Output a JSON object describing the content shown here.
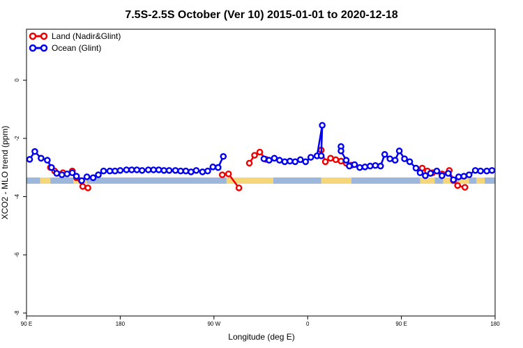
{
  "chart_data": {
    "type": "line",
    "title": "7.5S-2.5S October (Ver 10)   2015-01-01 to 2020-12-18",
    "xlabel": "Longitude (deg E)",
    "ylabel": "XCO2 - MLO trend (ppm)",
    "x_axis": {
      "domain": [
        0,
        360
      ],
      "ticks": [
        {
          "value": 0,
          "label": "90 E"
        },
        {
          "value": 90,
          "label": "180"
        },
        {
          "value": 180,
          "label": "90 W"
        },
        {
          "value": 270,
          "label": "0"
        },
        {
          "value": 360,
          "label": "90 E"
        },
        {
          "value": 450,
          "label": "180"
        }
      ],
      "range": [
        0,
        450
      ]
    },
    "y_axis": {
      "range": [
        -8.1,
        1.75
      ],
      "ticks": [
        0,
        -2,
        -4,
        -6,
        -8
      ]
    },
    "legend": {
      "placement": "top-left",
      "entries": [
        {
          "name": "Land (Nadir&Glint)",
          "color": "#ee0000"
        },
        {
          "name": "Ocean (Glint)",
          "color": "#0000ee"
        }
      ]
    },
    "land_mask": {
      "y": -3.45,
      "ocean_color": "#9db7dc",
      "land_color": "#f5d77a",
      "land_segments": [
        [
          13,
          23
        ],
        [
          45,
          58
        ],
        [
          192,
          237
        ],
        [
          283,
          312
        ],
        [
          378,
          392
        ],
        [
          400,
          412
        ],
        [
          415,
          425
        ],
        [
          432,
          440
        ]
      ]
    },
    "series": [
      {
        "name": "Land (Nadir&Glint)",
        "color": "#ee0000",
        "segments": [
          [
            [
              23,
              -3.0
            ],
            [
              27,
              -3.12
            ],
            [
              35,
              -3.18
            ],
            [
              44,
              -3.12
            ],
            [
              48,
              -3.35
            ],
            [
              54,
              -3.65
            ],
            [
              59,
              -3.7
            ]
          ],
          [
            [
              188,
              -3.25
            ],
            [
              194,
              -3.22
            ],
            [
              204,
              -3.7
            ]
          ],
          [
            [
              214,
              -2.85
            ],
            [
              219,
              -2.58
            ],
            [
              224,
              -2.47
            ],
            [
              230,
              -2.72
            ]
          ],
          [
            [
              283,
              -2.4
            ],
            [
              287,
              -2.8
            ],
            [
              292,
              -2.68
            ],
            [
              297,
              -2.73
            ],
            [
              302,
              -2.78
            ],
            [
              307,
              -2.85
            ],
            [
              312,
              -2.92
            ]
          ],
          [
            [
              380,
              -3.02
            ],
            [
              385,
              -3.12
            ],
            [
              390,
              -3.18
            ],
            [
              399,
              -3.22
            ],
            [
              406,
              -3.1
            ],
            [
              410,
              -3.45
            ],
            [
              414,
              -3.62
            ],
            [
              421,
              -3.68
            ]
          ]
        ]
      },
      {
        "name": "Ocean (Glint)",
        "color": "#0000ee",
        "segments": [
          [
            [
              3,
              -2.72
            ],
            [
              8,
              -2.45
            ],
            [
              14,
              -2.68
            ],
            [
              20,
              -2.75
            ],
            [
              24,
              -3.0
            ],
            [
              29,
              -3.2
            ],
            [
              34,
              -3.25
            ],
            [
              39,
              -3.22
            ],
            [
              44,
              -3.18
            ],
            [
              48,
              -3.3
            ],
            [
              53,
              -3.45
            ],
            [
              58,
              -3.32
            ],
            [
              64,
              -3.35
            ],
            [
              69,
              -3.25
            ],
            [
              74,
              -3.12
            ],
            [
              80,
              -3.12
            ],
            [
              85,
              -3.12
            ],
            [
              90,
              -3.1
            ],
            [
              96,
              -3.08
            ],
            [
              101,
              -3.08
            ],
            [
              106,
              -3.08
            ],
            [
              111,
              -3.1
            ],
            [
              117,
              -3.08
            ],
            [
              122,
              -3.08
            ],
            [
              127,
              -3.08
            ],
            [
              132,
              -3.1
            ],
            [
              137,
              -3.1
            ],
            [
              143,
              -3.1
            ],
            [
              148,
              -3.12
            ],
            [
              153,
              -3.12
            ],
            [
              158,
              -3.15
            ],
            [
              163,
              -3.1
            ],
            [
              169,
              -3.15
            ],
            [
              174,
              -3.12
            ],
            [
              179,
              -2.98
            ],
            [
              184,
              -3.0
            ],
            [
              189,
              -2.62
            ],
            [
              184,
              -3.0
            ]
          ],
          [
            [
              228,
              -2.7
            ],
            [
              233,
              -2.75
            ],
            [
              238,
              -2.68
            ],
            [
              243,
              -2.75
            ],
            [
              248,
              -2.8
            ],
            [
              253,
              -2.78
            ],
            [
              258,
              -2.8
            ],
            [
              263,
              -2.73
            ],
            [
              268,
              -2.8
            ],
            [
              273,
              -2.65
            ],
            [
              279,
              -2.6
            ],
            [
              284,
              -1.55
            ],
            [
              283,
              -2.6
            ]
          ],
          [
            [
              302,
              -2.28
            ],
            [
              302,
              -2.43
            ],
            [
              307,
              -2.75
            ],
            [
              310,
              -2.95
            ],
            [
              315,
              -2.9
            ],
            [
              320,
              -3.0
            ],
            [
              325,
              -2.98
            ],
            [
              330,
              -2.95
            ],
            [
              335,
              -2.93
            ],
            [
              340,
              -2.95
            ],
            [
              344,
              -2.55
            ],
            [
              349,
              -2.7
            ],
            [
              354,
              -2.75
            ],
            [
              358,
              -2.43
            ],
            [
              363,
              -2.7
            ],
            [
              368,
              -2.8
            ],
            [
              374,
              -3.02
            ],
            [
              378,
              -3.18
            ],
            [
              383,
              -3.28
            ],
            [
              388,
              -3.2
            ],
            [
              394,
              -3.12
            ],
            [
              399,
              -3.28
            ],
            [
              405,
              -3.2
            ],
            [
              410,
              -3.42
            ],
            [
              415,
              -3.32
            ],
            [
              420,
              -3.3
            ],
            [
              425,
              -3.25
            ],
            [
              431,
              -3.1
            ],
            [
              436,
              -3.12
            ],
            [
              442,
              -3.12
            ],
            [
              447,
              -3.1
            ]
          ]
        ]
      }
    ]
  }
}
